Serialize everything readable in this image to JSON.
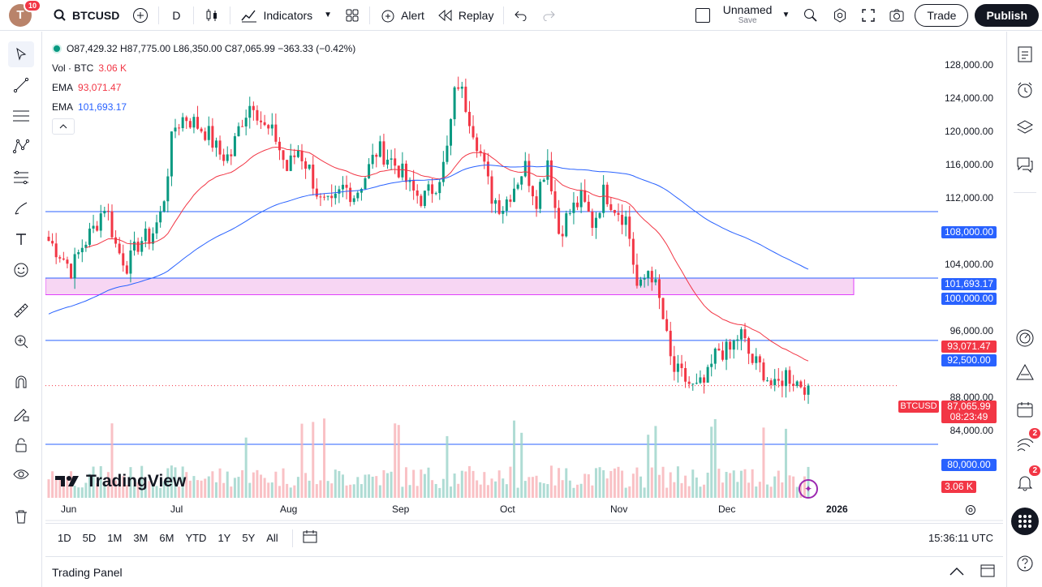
{
  "app": {
    "user_initial": "T",
    "notifications": "10",
    "symbol": "BTCUSD",
    "interval": "D",
    "indicators_label": "Indicators",
    "alert_label": "Alert",
    "replay_label": "Replay",
    "layout_name": "Unnamed",
    "layout_status": "Save",
    "trade_label": "Trade",
    "publish_label": "Publish"
  },
  "legend": {
    "ohlc": "O87,429.32 H87,775.00 L86,350.00 C87,065.99 −363.33 (−0.42%)",
    "vol_label": "Vol · BTC",
    "vol_value": "3.06 K",
    "ema1_label": "EMA",
    "ema1_value": "93,071.47",
    "ema2_label": "EMA",
    "ema2_value": "101,693.17"
  },
  "price_axis": [
    "128,000.00",
    "124,000.00",
    "120,000.00",
    "116,000.00",
    "112,000.00",
    "104,000.00",
    "96,000.00",
    "88,000.00",
    "84,000.00"
  ],
  "price_tags": {
    "l108": "108,000.00",
    "ema_blue": "101,693.17",
    "l100": "100,000.00",
    "ema_red": "93,071.47",
    "l92": "92,500.00",
    "symbol_tag": "BTCUSD",
    "last_price": "87,065.99",
    "countdown": "08:23:49",
    "l80": "80,000.00",
    "volume": "3.06 K"
  },
  "time_axis": [
    "Jun",
    "Jul",
    "Aug",
    "Sep",
    "Oct",
    "Nov",
    "Dec",
    "2026"
  ],
  "watermark": "TradingView",
  "ranges": [
    "1D",
    "5D",
    "1M",
    "3M",
    "6M",
    "YTD",
    "1Y",
    "5Y",
    "All"
  ],
  "clock": "15:36:11 UTC",
  "trading_panel": "Trading Panel",
  "right_badges": {
    "ideas": "2",
    "notifications": "2"
  },
  "colors": {
    "up": "#089981",
    "down": "#f23645",
    "ema_fast": "#f23645",
    "ema_slow": "#2962ff",
    "hline": "#2962ff",
    "zone_fill": "#f7d6f3",
    "zone_border": "#e040fb"
  },
  "chart_data": {
    "type": "candlestick",
    "interval": "1D",
    "y_scale": "linear",
    "ylim": [
      78000,
      130000
    ],
    "last_close": 87065.99,
    "horizontal_lines": [
      108000,
      92500,
      80000
    ],
    "zone": [
      98000,
      100000
    ],
    "ema_fast": {
      "last": 93071.47
    },
    "ema_slow": {
      "last": 101693.17
    },
    "close_path": [
      104500,
      103000,
      101000,
      104000,
      106000,
      109000,
      103500,
      101500,
      104500,
      105000,
      108000,
      118000,
      119500,
      118500,
      117500,
      115000,
      114500,
      119000,
      121500,
      118000,
      117000,
      113000,
      115500,
      113000,
      109000,
      108500,
      111000,
      110000,
      112500,
      115500,
      114500,
      113000,
      110500,
      109500,
      111000,
      114000,
      124000,
      120000,
      115500,
      110000,
      108500,
      111000,
      113500,
      109500,
      114500,
      105500,
      108000,
      109500,
      106500,
      110500,
      108500,
      107000,
      98000,
      101500,
      96500,
      89000,
      88000,
      86500,
      87500,
      91500,
      91000,
      93500,
      90000,
      89000,
      86500,
      88500,
      87500,
      87066
    ]
  }
}
